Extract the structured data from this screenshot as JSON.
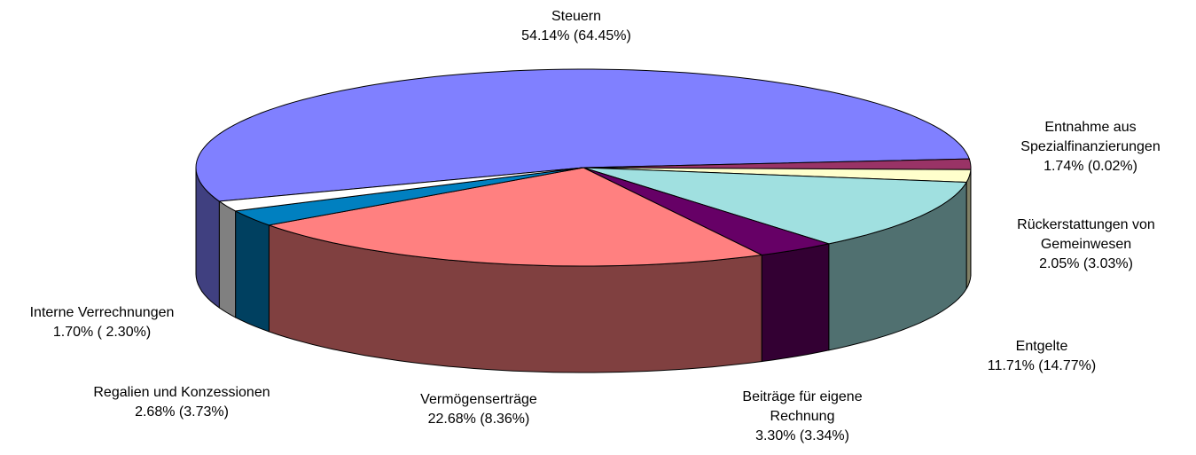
{
  "chart_data": {
    "type": "pie3d",
    "categories": [
      "Steuern",
      "Entnahme aus Spezialfinanzierungen",
      "Rückerstattungen von Gemeinwesen",
      "Entgelte",
      "Beiträge für eigene Rechnung",
      "Vermögenserträge",
      "Regalien und Konzessionen",
      "Interne Verrechnungen"
    ],
    "values": [
      54.14,
      1.74,
      2.05,
      11.71,
      3.3,
      22.68,
      2.68,
      1.7
    ],
    "value_labels": [
      "54.14% (64.45%)",
      "1.74% (0.02%)",
      "2.05% (3.03%)",
      "11.71% (14.77%)",
      "3.30% (3.34%)",
      "22.68% (8.36%)",
      "2.68% (3.73%)",
      "1.70% ( 2.30%)"
    ],
    "colors": [
      "#8080ff",
      "#993366",
      "#ffffcc",
      "#a0e0e0",
      "#660066",
      "#ff8080",
      "#0080c0",
      "#ffffff"
    ]
  }
}
